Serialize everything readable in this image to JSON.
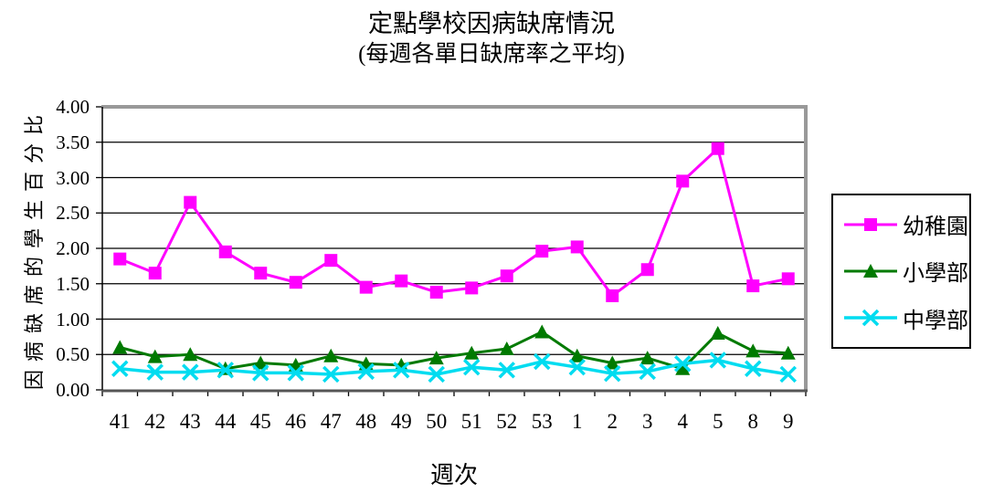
{
  "chart_data": {
    "type": "line",
    "title": "定點學校因病缺席情況",
    "subtitle": "(每週各單日缺席率之平均)",
    "xlabel": "週次",
    "ylabel": "因病缺席的學生百分比",
    "ylim": [
      0,
      4
    ],
    "ytick_step": 0.5,
    "ytick_labels": [
      "4.00",
      "3.50",
      "3.00",
      "2.50",
      "2.00",
      "1.50",
      "1.00",
      "0.50",
      "0.00"
    ],
    "categories": [
      "41",
      "42",
      "43",
      "44",
      "45",
      "46",
      "47",
      "48",
      "49",
      "50",
      "51",
      "52",
      "53",
      "1",
      "2",
      "3",
      "4",
      "5",
      "8",
      "9"
    ],
    "grid": true,
    "legend_position": "right",
    "series": [
      {
        "name": "幼稚園",
        "color": "#FF00FF",
        "marker": "square",
        "values": [
          1.85,
          1.65,
          2.65,
          1.95,
          1.65,
          1.52,
          1.83,
          1.45,
          1.54,
          1.38,
          1.44,
          1.61,
          1.96,
          2.02,
          1.33,
          1.7,
          2.95,
          3.41,
          1.47,
          1.57
        ]
      },
      {
        "name": "小學部",
        "color": "#007A00",
        "marker": "triangle",
        "values": [
          0.6,
          0.47,
          0.5,
          0.3,
          0.38,
          0.35,
          0.48,
          0.37,
          0.35,
          0.45,
          0.52,
          0.58,
          0.82,
          0.48,
          0.38,
          0.45,
          0.3,
          0.8,
          0.55,
          0.52
        ]
      },
      {
        "name": "中學部",
        "color": "#00DCF0",
        "marker": "x",
        "values": [
          0.3,
          0.25,
          0.25,
          0.28,
          0.24,
          0.24,
          0.22,
          0.26,
          0.28,
          0.22,
          0.32,
          0.28,
          0.4,
          0.32,
          0.23,
          0.26,
          0.37,
          0.42,
          0.3,
          0.22
        ]
      }
    ],
    "plot_border_color": "#999999",
    "gridline_color": "#000000"
  }
}
